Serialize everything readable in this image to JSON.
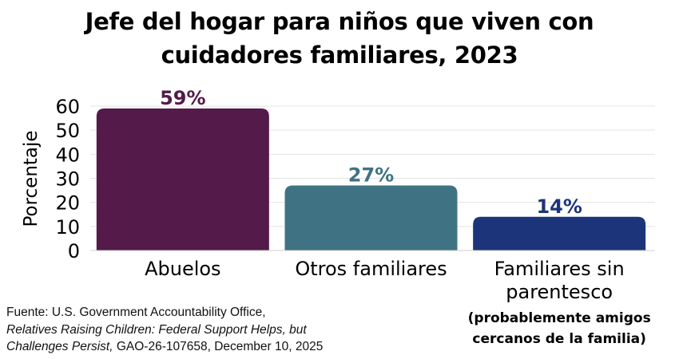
{
  "chart_data": {
    "type": "bar",
    "title": [
      "Jefe del hogar para niños que viven con",
      "cuidadores familiares, 2023"
    ],
    "ylabel": "Porcentaje",
    "xlabel": "",
    "ylim": [
      0,
      60
    ],
    "yticks": [
      0,
      10,
      20,
      30,
      40,
      50,
      60
    ],
    "grid": true,
    "categories": [
      {
        "lines": [
          "Abuelos"
        ],
        "sublines": []
      },
      {
        "lines": [
          "Otros familiares"
        ],
        "sublines": []
      },
      {
        "lines": [
          "Familiares sin",
          "parentesco"
        ],
        "sublines": [
          "(probablemente amigos",
          "cercanos de la familia)"
        ]
      }
    ],
    "values": [
      59,
      27,
      14
    ],
    "value_labels": [
      "59%",
      "27%",
      "14%"
    ],
    "colors": [
      "#531a4a",
      "#3f7383",
      "#1c357a"
    ]
  },
  "source": {
    "line1": "Fuente:  U.S. Government Accountability Office,",
    "line2": "Relatives Raising Children: Federal Support Helps, but",
    "line3_italic": "Challenges Persist,",
    "line3_rest": " GAO-26-107658, December 10, 2025"
  }
}
